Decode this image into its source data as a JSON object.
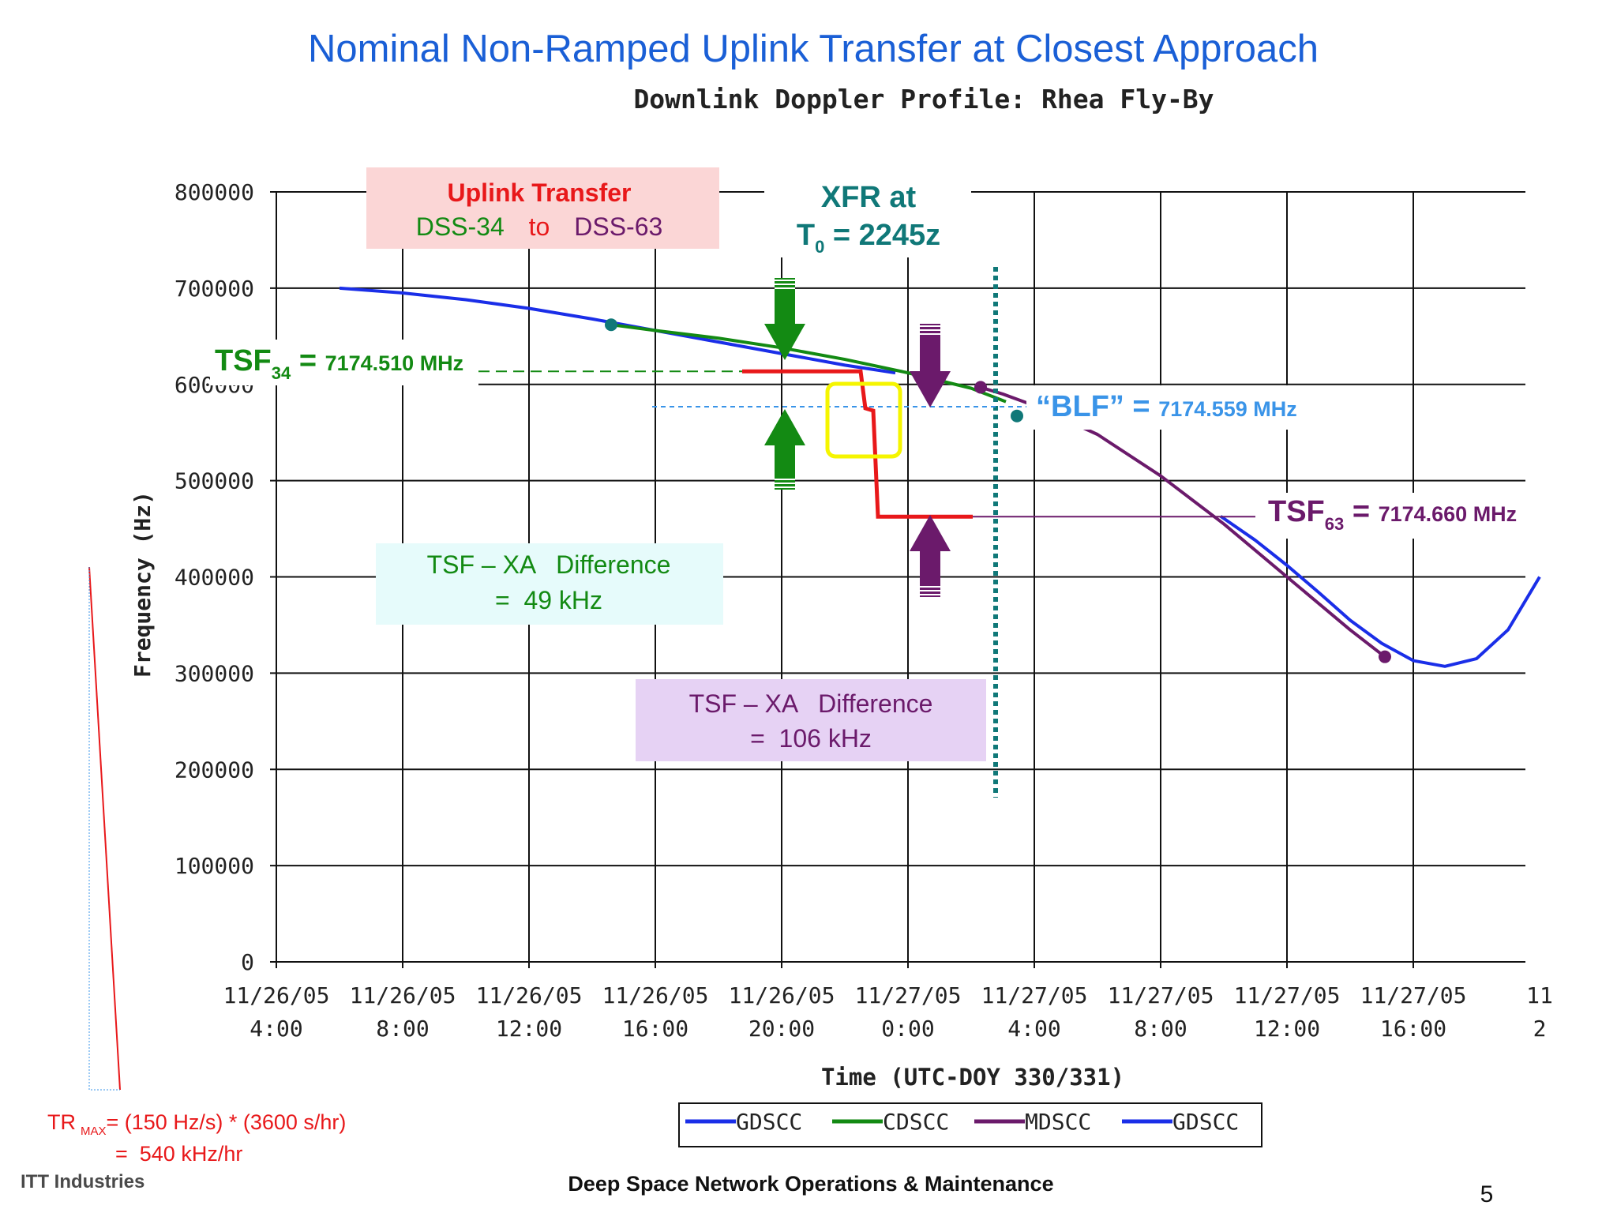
{
  "slide": {
    "title": "Nominal Non-Ramped Uplink Transfer at Closest Approach",
    "page_number": "5",
    "footer_center": "Deep Space Network Operations & Maintenance",
    "footer_left_logo": "ITT Industries",
    "tr_max_line1_a": "TR",
    "tr_max_line1_sub": "MAX",
    "tr_max_line1_b": "= (150 Hz/s) * (3600 s/hr)",
    "tr_max_line2": "=  540 kHz/hr"
  },
  "annotations": {
    "uplink_title": "Uplink Transfer",
    "uplink_from": "DSS-34",
    "uplink_to_word": "to",
    "uplink_to": "DSS-63",
    "xfr_line1": "XFR at",
    "xfr_t": "T",
    "xfr_sub": "0",
    "xfr_rest": " = 2245z",
    "tsf34_main": "TSF",
    "tsf34_sub": "34",
    "tsf34_eq": " = ",
    "tsf34_val": "7174.510 MHz",
    "blf_main": "“BLF” = ",
    "blf_val": "7174.559 MHz",
    "tsf63_main": "TSF",
    "tsf63_sub": "63",
    "tsf63_eq": " = ",
    "tsf63_val": "7174.660 MHz",
    "diff1_line1": "TSF – XA   Difference",
    "diff1_line2": "=  49 kHz",
    "diff2_line1": "TSF – XA   Difference",
    "diff2_line2": "=  106 kHz",
    "tsf63_level_hz": 465000,
    "tsf34_level_hz": 625000,
    "transfer_time_hr": 22.75
  },
  "colors": {
    "title_blue": "#1a5fd6",
    "green": "#138a13",
    "purple": "#6b1a6b",
    "red": "#e8181a",
    "teal": "#107878",
    "blf_blue": "#3a94e8",
    "gdscc_blue": "#1a2ee8",
    "pink_box": "#fbd6d6",
    "cyan_box": "#e6fbfb",
    "lavender_box": "#e6d2f4",
    "highlight_yellow": "#f5f500"
  },
  "chart_data": {
    "type": "line",
    "title": "Downlink Doppler Profile: Rhea Fly-By",
    "xlabel": "Time (UTC-DOY 330/331)",
    "ylabel": "Frequency (Hz)",
    "xlim_hours": [
      0,
      40
    ],
    "ylim": [
      0,
      800000
    ],
    "grid": true,
    "legend_position": "bottom",
    "y_ticks": [
      "0",
      "100000",
      "200000",
      "300000",
      "400000",
      "500000",
      "600000",
      "700000",
      "800000"
    ],
    "x_ticks": [
      {
        "date": "11/26/05",
        "time": "4:00"
      },
      {
        "date": "11/26/05",
        "time": "8:00"
      },
      {
        "date": "11/26/05",
        "time": "12:00"
      },
      {
        "date": "11/26/05",
        "time": "16:00"
      },
      {
        "date": "11/26/05",
        "time": "20:00"
      },
      {
        "date": "11/27/05",
        "time": "0:00"
      },
      {
        "date": "11/27/05",
        "time": "4:00"
      },
      {
        "date": "11/27/05",
        "time": "8:00"
      },
      {
        "date": "11/27/05",
        "time": "12:00"
      },
      {
        "date": "11/27/05",
        "time": "16:00"
      },
      {
        "date": "11",
        "time": "2"
      }
    ],
    "series": [
      {
        "name": "GDSCC",
        "color": "#1a2ee8",
        "x": [
          2,
          4,
          6,
          8,
          10,
          12,
          14,
          16,
          18,
          19.6
        ],
        "y": [
          700000,
          695000,
          688000,
          679000,
          668000,
          656000,
          644000,
          632000,
          620000,
          612000
        ]
      },
      {
        "name": "CDSCC",
        "color": "#138a13",
        "x": [
          10.6,
          12,
          14,
          16,
          18,
          20,
          22,
          23.1
        ],
        "y": [
          662000,
          656000,
          648000,
          638000,
          626000,
          612000,
          596000,
          582000
        ]
      },
      {
        "name": "MDSCC",
        "color": "#6b1a6b",
        "x": [
          22.3,
          23,
          24,
          26,
          28,
          30,
          32,
          34,
          35.1
        ],
        "y": [
          597000,
          590000,
          578000,
          548000,
          505000,
          455000,
          400000,
          345000,
          317000
        ]
      },
      {
        "name": "GDSCC",
        "color": "#1a2ee8",
        "x": [
          29.9,
          31,
          32,
          33,
          34,
          35,
          36,
          37,
          38,
          39,
          40
        ],
        "y": [
          463000,
          438000,
          412000,
          384000,
          355000,
          331000,
          313000,
          307000,
          315000,
          345000,
          400000
        ]
      }
    ]
  }
}
